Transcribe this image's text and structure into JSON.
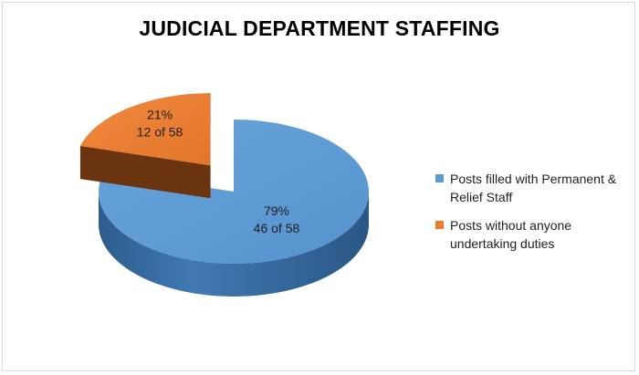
{
  "chart_data": {
    "type": "pie",
    "title": "JUDICIAL DEPARTMENT STAFFING",
    "legend_position": "right",
    "slices": [
      {
        "name": "Posts filled with Permanent & Relief Staff",
        "value": 46,
        "percent_label": "79%",
        "count_label": "46 of 58",
        "color": "#5b9bd5",
        "side_color": "#3a6fa3",
        "exploded": false
      },
      {
        "name": "Posts without anyone undertaking duties",
        "value": 12,
        "percent_label": "21%",
        "count_label": "12 of 58",
        "color": "#ed7d31",
        "side_color": "#6b3410",
        "exploded": true
      }
    ],
    "total": 58
  }
}
